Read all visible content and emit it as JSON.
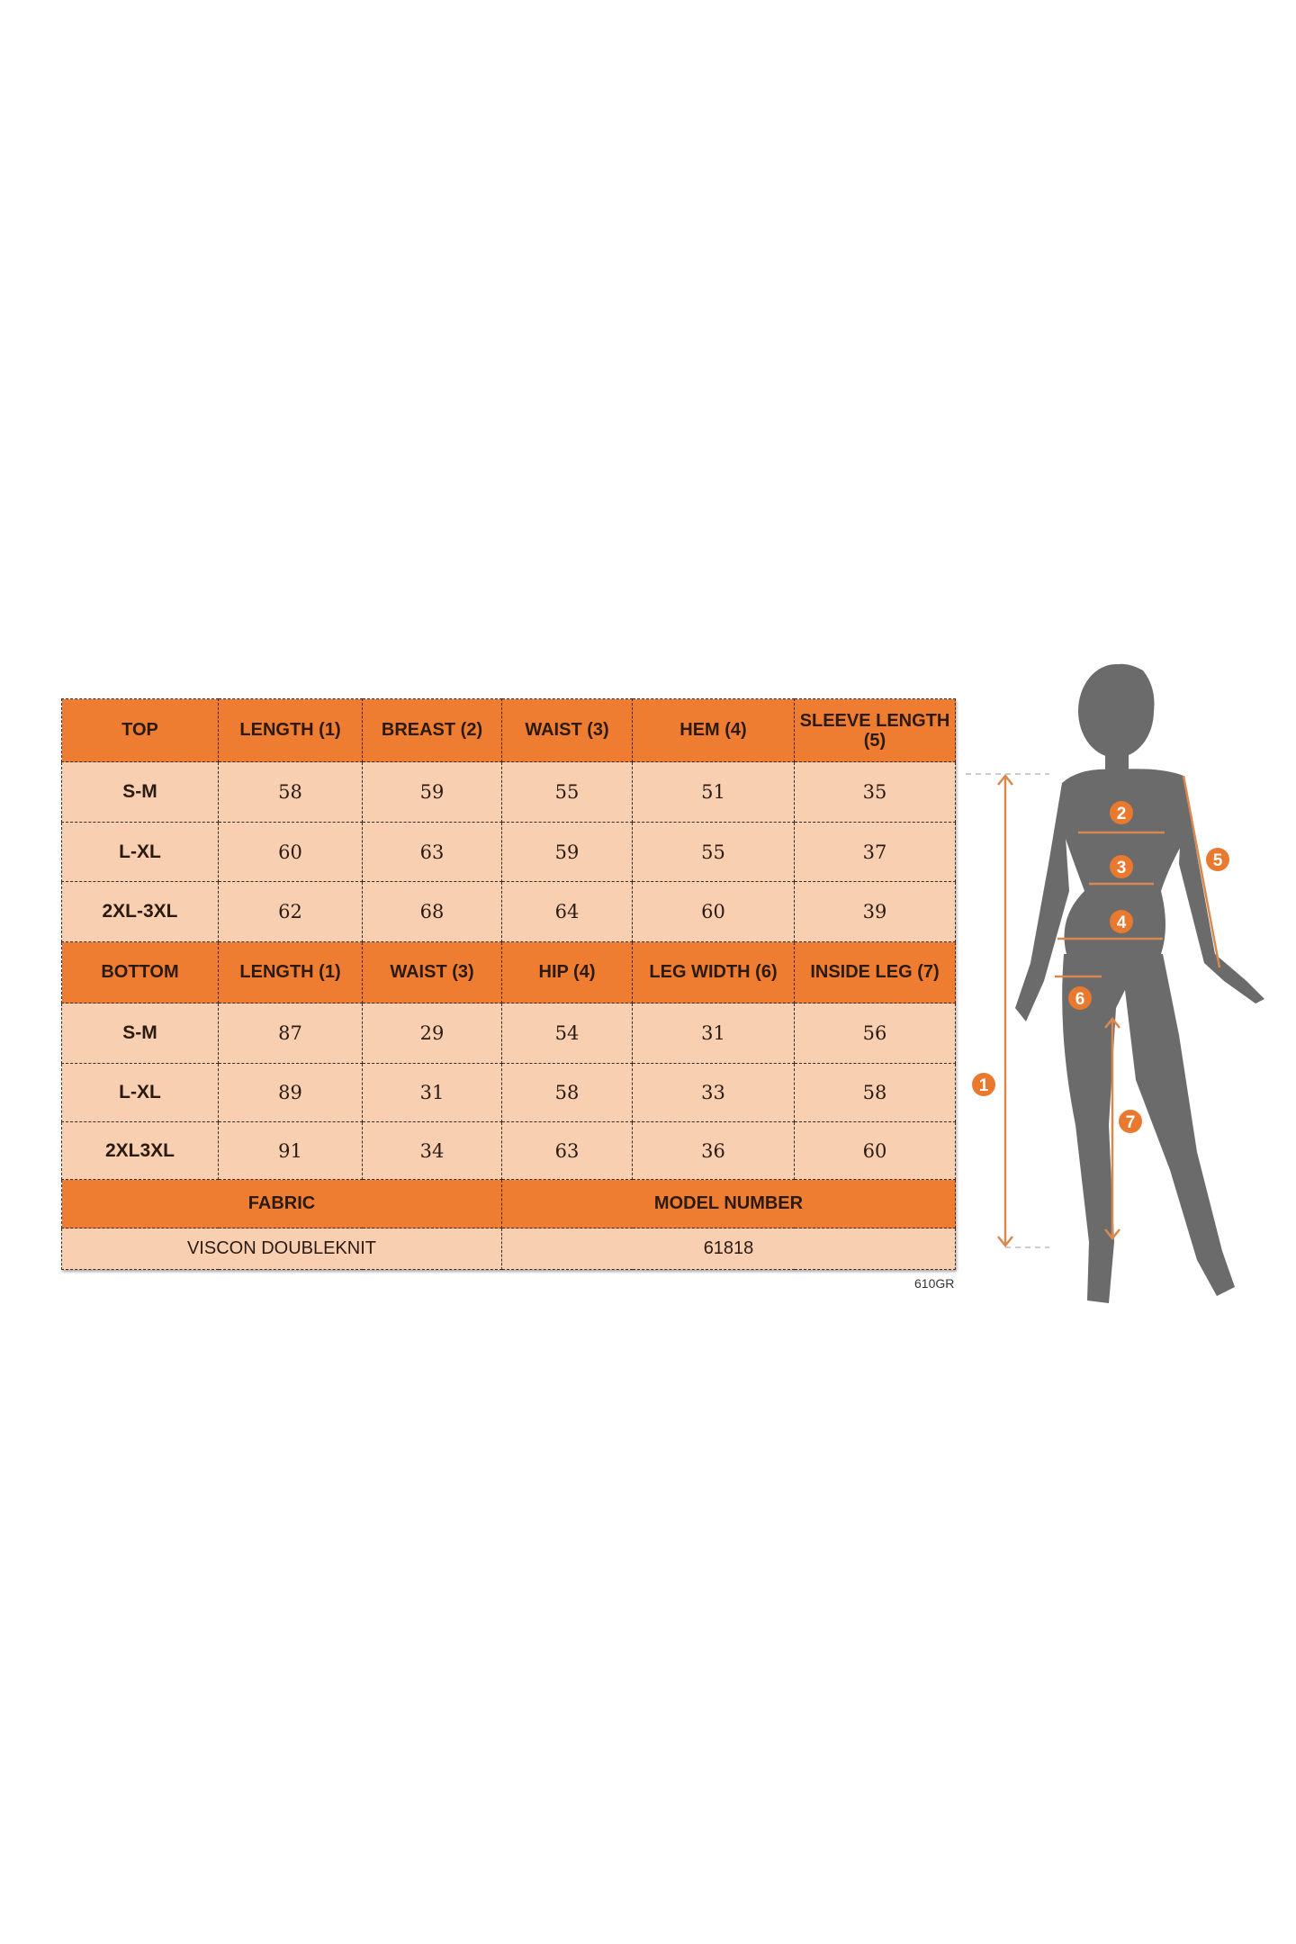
{
  "top": {
    "headers": [
      "TOP",
      "LENGTH (1)",
      "BREAST (2)",
      "WAIST (3)",
      "HEM (4)",
      "SLEEVE LENGTH (5)"
    ],
    "rows": [
      [
        "S-M",
        "58",
        "59",
        "55",
        "51",
        "35"
      ],
      [
        "L-XL",
        "60",
        "63",
        "59",
        "55",
        "37"
      ],
      [
        "2XL-3XL",
        "62",
        "68",
        "64",
        "60",
        "39"
      ]
    ]
  },
  "bottom": {
    "headers": [
      "BOTTOM",
      "LENGTH (1)",
      "WAIST (3)",
      "HIP (4)",
      "LEG WIDTH (6)",
      "INSIDE LEG (7)"
    ],
    "rows": [
      [
        "S-M",
        "87",
        "29",
        "54",
        "31",
        "56"
      ],
      [
        "L-XL",
        "89",
        "31",
        "58",
        "33",
        "58"
      ],
      [
        "2XL3XL",
        "91",
        "34",
        "63",
        "36",
        "60"
      ]
    ]
  },
  "info": {
    "fabric_label": "FABRIC",
    "model_label": "MODEL NUMBER",
    "fabric": "VISCON DOUBLEKNIT",
    "model": "61818"
  },
  "code": "610GR",
  "figure": {
    "markers": [
      "1",
      "2",
      "3",
      "4",
      "5",
      "6",
      "7"
    ]
  },
  "colors": {
    "header": "#ee7d31",
    "cell": "#f8cfb0",
    "silhouette": "#6b6b6b",
    "arrow": "#d9894f"
  }
}
